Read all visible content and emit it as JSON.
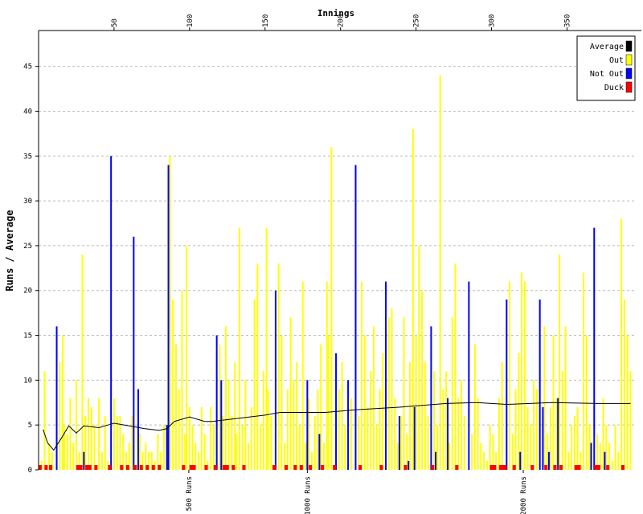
{
  "chart_data": {
    "type": "bar",
    "title": "Innings",
    "ylabel": "Runs / Average",
    "xlim": [
      0,
      395
    ],
    "ylim": [
      0,
      49
    ],
    "xticks": [
      50,
      100,
      150,
      200,
      250,
      300,
      350
    ],
    "x2ticks": [
      {
        "value": 99.5,
        "label": "500 Runs"
      },
      {
        "value": 178,
        "label": "1000 Runs"
      },
      {
        "value": 321,
        "label": "2000 Runs"
      }
    ],
    "yticks": [
      0,
      5,
      10,
      15,
      20,
      25,
      30,
      35,
      40,
      45
    ],
    "grid": true,
    "legend": "top-right",
    "series": [
      {
        "name": "Average",
        "color": "#000000",
        "kind": "line",
        "x": [
          3,
          6,
          10,
          15,
          20,
          25,
          30,
          40,
          50,
          60,
          70,
          80,
          85,
          90,
          100,
          110,
          115,
          130,
          150,
          160,
          190,
          210,
          240,
          270,
          290,
          310,
          340,
          370,
          392
        ],
        "values": [
          4.5,
          3,
          2.2,
          3.5,
          4.9,
          4.1,
          4.9,
          4.7,
          5.2,
          4.9,
          4.6,
          4.4,
          4.6,
          5.4,
          5.9,
          5.4,
          5.4,
          5.7,
          6.1,
          6.4,
          6.4,
          6.7,
          7,
          7.4,
          7.5,
          7.3,
          7.5,
          7.4,
          7.4
        ]
      },
      {
        "name": "Out",
        "color": "#ffff00",
        "kind": "bar",
        "x": [
          2,
          4,
          7,
          9,
          14,
          16,
          17,
          19,
          21,
          23,
          25,
          27,
          29,
          31,
          33,
          35,
          37,
          40,
          42,
          44,
          46,
          50,
          52,
          54,
          56,
          58,
          60,
          62,
          67,
          69,
          71,
          73,
          75,
          77,
          79,
          81,
          83,
          87,
          89,
          91,
          93,
          95,
          97,
          98,
          100,
          102,
          104,
          106,
          108,
          110,
          112,
          114,
          116,
          120,
          122,
          124,
          126,
          128,
          130,
          131,
          133,
          135,
          137,
          139,
          141,
          143,
          145,
          147,
          149,
          151,
          152,
          154,
          159,
          161,
          163,
          165,
          167,
          169,
          171,
          173,
          175,
          177,
          179,
          181,
          183,
          185,
          187,
          189,
          191,
          192,
          194,
          199,
          201,
          203,
          207,
          212,
          214,
          216,
          218,
          220,
          222,
          224,
          226,
          228,
          232,
          234,
          236,
          238,
          240,
          242,
          244,
          246,
          248,
          250,
          252,
          254,
          256,
          258,
          262,
          264,
          266,
          268,
          270,
          272,
          274,
          276,
          278,
          280,
          282,
          287,
          289,
          291,
          293,
          295,
          297,
          299,
          301,
          303,
          305,
          307,
          312,
          314,
          316,
          318,
          320,
          322,
          324,
          326,
          328,
          330,
          335,
          337,
          339,
          341,
          343,
          345,
          347,
          349,
          351,
          353,
          355,
          357,
          359,
          361,
          363,
          365,
          370,
          372,
          374,
          376,
          378,
          380,
          382,
          384,
          386,
          388,
          390,
          392
        ],
        "values": [
          1,
          11,
          3,
          2,
          12,
          15,
          5,
          4,
          8,
          3,
          10,
          2,
          24,
          6,
          8,
          7,
          5,
          8,
          2,
          6,
          1,
          8,
          6,
          6,
          4,
          2,
          3,
          6,
          4,
          2,
          3,
          2,
          2,
          1,
          4,
          2,
          5,
          35,
          19,
          14,
          9,
          20,
          4,
          25,
          7,
          5,
          3,
          2,
          7,
          4,
          1,
          7,
          5,
          14,
          6,
          16,
          10,
          6,
          12,
          4,
          27,
          5,
          10,
          3,
          7,
          19,
          23,
          5,
          11,
          27,
          9,
          6,
          23,
          15,
          3,
          9,
          17,
          10,
          12,
          5,
          21,
          3,
          8,
          2,
          6,
          9,
          14,
          3,
          21,
          15,
          36,
          9,
          12,
          5,
          8,
          6,
          21,
          15,
          7,
          11,
          16,
          5,
          9,
          13,
          17,
          18,
          8,
          3,
          6,
          17,
          4,
          12,
          38,
          15,
          25,
          20,
          12,
          6,
          11,
          5,
          44,
          9,
          11,
          3,
          17,
          23,
          8,
          10,
          6,
          4,
          14,
          8,
          3,
          2,
          1,
          5,
          4,
          2,
          8,
          12,
          21,
          4,
          9,
          13,
          22,
          21,
          7,
          5,
          10,
          9,
          16,
          4,
          7,
          15,
          8,
          24,
          11,
          16,
          2,
          5,
          6,
          7,
          2,
          22,
          15,
          5,
          4,
          3,
          8,
          5,
          3,
          1,
          5,
          2,
          28,
          19,
          15,
          11
        ]
      },
      {
        "name": "Not Out",
        "color": "#0000ff",
        "kind": "bar",
        "x": [
          12,
          30,
          48,
          63,
          66,
          85,
          86,
          118,
          121,
          157,
          178,
          186,
          197,
          205,
          210,
          230,
          239,
          245,
          249,
          260,
          263,
          271,
          285,
          310,
          319,
          332,
          334,
          338,
          344,
          366,
          368,
          375
        ],
        "values": [
          16,
          2,
          35,
          26,
          9,
          5,
          34,
          15,
          10,
          20,
          10,
          4,
          13,
          10,
          34,
          21,
          6,
          1,
          7,
          16,
          2,
          8,
          21,
          19,
          2,
          19,
          7,
          2,
          8,
          3,
          27,
          2
        ]
      },
      {
        "name": "Duck",
        "color": "#ff0000",
        "kind": "duck",
        "x": [
          1,
          5,
          8,
          26,
          28,
          32,
          34,
          38,
          47,
          55,
          59,
          64,
          68,
          72,
          76,
          80,
          96,
          101,
          103,
          111,
          117,
          123,
          125,
          129,
          136,
          156,
          164,
          170,
          174,
          180,
          188,
          196,
          213,
          227,
          243,
          261,
          277,
          300,
          302,
          306,
          308,
          309,
          315,
          327,
          336,
          342,
          346,
          356,
          358,
          369,
          371,
          377,
          387
        ],
        "values": [
          0,
          0,
          0,
          0,
          0,
          0,
          0,
          0,
          0,
          0,
          0,
          0,
          0,
          0,
          0,
          0,
          0,
          0,
          0,
          0,
          0,
          0,
          0,
          0,
          0,
          0,
          0,
          0,
          0,
          0,
          0,
          0,
          0,
          0,
          0,
          0,
          0,
          0,
          0,
          0,
          0,
          0,
          0,
          0,
          0,
          0,
          0,
          0,
          0,
          0,
          0,
          0,
          0
        ]
      }
    ]
  }
}
